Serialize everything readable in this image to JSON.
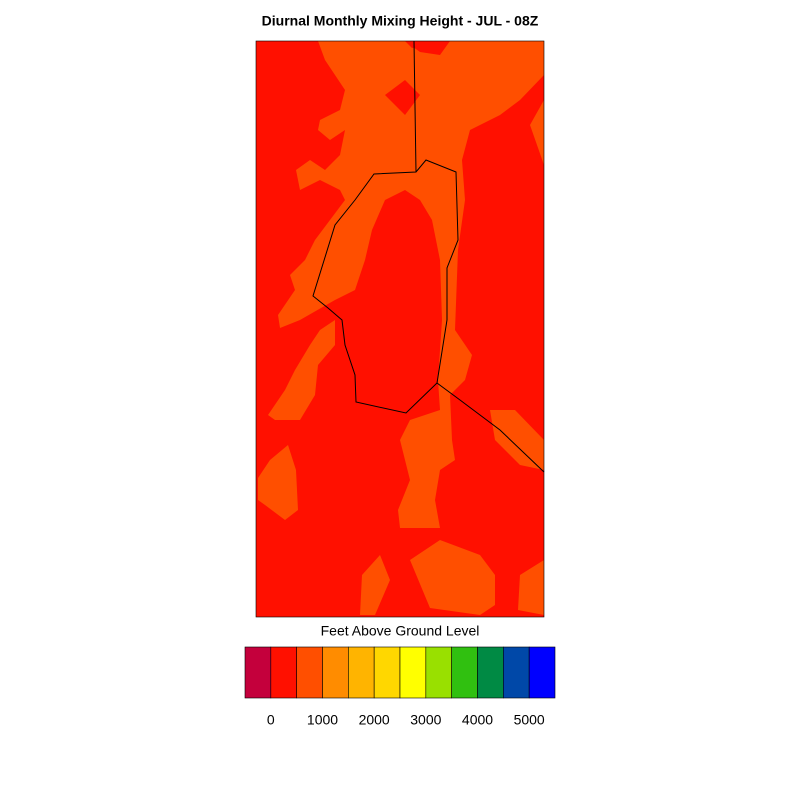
{
  "title": "Diurnal Monthly Mixing Height - JUL - 08Z",
  "colorbar": {
    "label": "Feet Above Ground Level",
    "colors": [
      "#c4003c",
      "#ff1000",
      "#ff4f00",
      "#ff8c00",
      "#ffb400",
      "#ffd700",
      "#ffff00",
      "#99e000",
      "#30c010",
      "#008a44",
      "#0048a8",
      "#0000ff"
    ],
    "lim": [
      -500,
      5500
    ],
    "ticks": [
      0,
      1000,
      2000,
      3000,
      4000,
      5000
    ]
  }
}
